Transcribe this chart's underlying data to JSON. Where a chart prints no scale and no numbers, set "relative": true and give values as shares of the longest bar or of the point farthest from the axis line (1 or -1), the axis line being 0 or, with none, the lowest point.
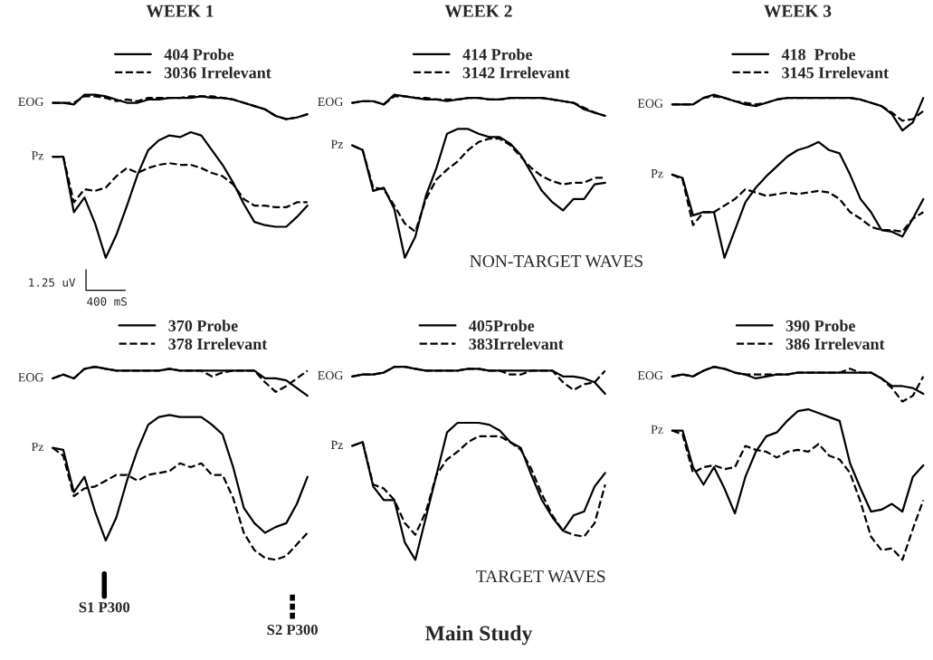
{
  "chart_data": [
    {
      "type": "line",
      "title": "WEEK 1",
      "relative": true,
      "legend": "top",
      "categories": [
        null,
        null,
        null,
        null,
        null,
        null,
        null,
        null,
        null,
        null,
        null,
        null,
        null,
        null,
        null,
        null,
        null,
        null,
        null,
        null,
        null,
        null,
        null,
        null,
        null
      ],
      "series": [
        {
          "color": "#000000",
          "line_style": "solid",
          "values": [
            0.95,
            0.95,
            0.94,
            1.0,
            1.0,
            0.99,
            0.97,
            0.95,
            0.95,
            0.97,
            0.97,
            0.98,
            0.98,
            0.98,
            0.99,
            0.98,
            0.98,
            0.97,
            0.95,
            0.93,
            0.91,
            0.87,
            0.85,
            0.86,
            0.88
          ]
        },
        {
          "color": "#000000",
          "line_style": "dashed",
          "values": [
            0.95,
            0.95,
            0.95,
            0.99,
            0.99,
            0.98,
            0.96,
            0.97,
            0.96,
            0.98,
            0.98,
            0.98,
            0.98,
            0.99,
            0.99,
            0.99,
            0.98,
            0.97,
            0.95,
            0.93,
            0.91,
            0.87,
            0.85,
            0.86,
            0.88
          ]
        },
        {
          "name": "404 Probe",
          "color": "#000000",
          "line_style": "solid",
          "values": [
            0.62,
            0.62,
            0.28,
            0.37,
            0.21,
            0.0,
            0.14,
            0.32,
            0.51,
            0.66,
            0.72,
            0.75,
            0.74,
            0.77,
            0.75,
            0.66,
            0.57,
            0.46,
            0.33,
            0.22,
            0.2,
            0.19,
            0.19,
            0.25,
            0.32
          ]
        },
        {
          "name": "3036 Irrelevant",
          "color": "#000000",
          "line_style": "dashed",
          "values": [
            0.62,
            0.62,
            0.34,
            0.42,
            0.41,
            0.43,
            0.5,
            0.55,
            0.52,
            0.55,
            0.57,
            0.58,
            0.57,
            0.57,
            0.55,
            0.52,
            0.5,
            0.45,
            0.36,
            0.32,
            0.32,
            0.31,
            0.31,
            0.34,
            0.34
          ]
        }
      ],
      "annotations": [
        "EOG",
        "Pz",
        "1.25 uV",
        "400 mS"
      ]
    },
    {
      "type": "line",
      "title": "WEEK 2",
      "relative": true,
      "legend": "top",
      "categories": [
        null,
        null,
        null,
        null,
        null,
        null,
        null,
        null,
        null,
        null,
        null,
        null,
        null,
        null,
        null,
        null,
        null,
        null,
        null,
        null,
        null,
        null,
        null,
        null,
        null
      ],
      "series": [
        {
          "color": "#000000",
          "line_style": "solid",
          "values": [
            0.95,
            0.96,
            0.96,
            0.94,
            1.0,
            0.99,
            0.98,
            0.97,
            0.97,
            0.96,
            0.97,
            0.98,
            0.98,
            0.97,
            0.97,
            0.98,
            0.98,
            0.98,
            0.98,
            0.97,
            0.96,
            0.95,
            0.91,
            0.89,
            0.87
          ]
        },
        {
          "color": "#000000",
          "line_style": "dashed",
          "values": [
            0.95,
            0.96,
            0.96,
            0.94,
            0.99,
            0.99,
            0.98,
            0.98,
            0.97,
            0.97,
            0.97,
            0.98,
            0.98,
            0.97,
            0.97,
            0.98,
            0.98,
            0.98,
            0.98,
            0.97,
            0.96,
            0.95,
            0.92,
            0.89,
            0.87
          ]
        },
        {
          "name": "414 Probe",
          "color": "#000000",
          "line_style": "solid",
          "values": [
            0.69,
            0.66,
            0.41,
            0.43,
            0.3,
            0.0,
            0.13,
            0.38,
            0.55,
            0.76,
            0.79,
            0.79,
            0.76,
            0.74,
            0.74,
            0.7,
            0.63,
            0.52,
            0.41,
            0.34,
            0.29,
            0.36,
            0.36,
            0.45,
            0.46
          ]
        },
        {
          "name": "3142 Irrelevant",
          "color": "#000000",
          "line_style": "dashed",
          "values": [
            0.69,
            0.66,
            0.43,
            0.42,
            0.32,
            0.21,
            0.16,
            0.36,
            0.48,
            0.54,
            0.59,
            0.66,
            0.71,
            0.73,
            0.73,
            0.69,
            0.62,
            0.55,
            0.5,
            0.47,
            0.45,
            0.46,
            0.46,
            0.49,
            0.49
          ]
        }
      ],
      "annotations": [
        "EOG",
        "Pz",
        "NON-TARGET WAVES"
      ]
    },
    {
      "type": "line",
      "title": "WEEK 3",
      "relative": true,
      "legend": "top",
      "categories": [
        null,
        null,
        null,
        null,
        null,
        null,
        null,
        null,
        null,
        null,
        null,
        null,
        null,
        null,
        null,
        null,
        null,
        null,
        null,
        null,
        null,
        null,
        null,
        null,
        null
      ],
      "series": [
        {
          "color": "#000000",
          "line_style": "solid",
          "values": [
            0.94,
            0.94,
            0.94,
            0.98,
            1.0,
            0.98,
            0.96,
            0.94,
            0.93,
            0.95,
            0.97,
            0.98,
            0.98,
            0.98,
            0.98,
            0.98,
            0.98,
            0.98,
            0.97,
            0.95,
            0.93,
            0.88,
            0.78,
            0.83,
            0.98
          ]
        },
        {
          "color": "#000000",
          "line_style": "dashed",
          "values": [
            0.94,
            0.94,
            0.94,
            0.98,
            0.99,
            0.98,
            0.96,
            0.95,
            0.94,
            0.95,
            0.97,
            0.98,
            0.98,
            0.98,
            0.98,
            0.98,
            0.98,
            0.98,
            0.97,
            0.95,
            0.93,
            0.89,
            0.84,
            0.85,
            0.9
          ]
        },
        {
          "name": "418  Probe",
          "color": "#000000",
          "line_style": "solid",
          "values": [
            0.51,
            0.49,
            0.26,
            0.28,
            0.28,
            0.0,
            0.17,
            0.34,
            0.43,
            0.5,
            0.56,
            0.62,
            0.66,
            0.68,
            0.71,
            0.66,
            0.64,
            0.51,
            0.36,
            0.28,
            0.17,
            0.16,
            0.13,
            0.24,
            0.36
          ]
        },
        {
          "name": "3145 Irrelevant",
          "color": "#000000",
          "line_style": "dashed",
          "values": [
            0.51,
            0.48,
            0.2,
            0.28,
            0.28,
            0.32,
            0.36,
            0.42,
            0.4,
            0.38,
            0.39,
            0.4,
            0.39,
            0.4,
            0.41,
            0.4,
            0.36,
            0.28,
            0.24,
            0.19,
            0.17,
            0.17,
            0.16,
            0.24,
            0.28
          ]
        }
      ],
      "annotations": [
        "EOG",
        "Pz"
      ]
    },
    {
      "type": "line",
      "relative": true,
      "legend": "top",
      "categories": [
        null,
        null,
        null,
        null,
        null,
        null,
        null,
        null,
        null,
        null,
        null,
        null,
        null,
        null,
        null,
        null,
        null,
        null,
        null,
        null,
        null,
        null,
        null,
        null,
        null
      ],
      "series": [
        {
          "color": "#000000",
          "line_style": "solid",
          "values": [
            0.94,
            0.96,
            0.94,
            0.99,
            1.0,
            0.99,
            0.98,
            0.98,
            0.98,
            0.98,
            0.98,
            0.99,
            0.98,
            0.98,
            0.98,
            0.98,
            0.98,
            0.98,
            0.98,
            0.98,
            0.94,
            0.94,
            0.93,
            0.89,
            0.85
          ]
        },
        {
          "color": "#000000",
          "line_style": "dashed",
          "values": [
            0.94,
            0.96,
            0.94,
            0.99,
            1.0,
            0.99,
            0.98,
            0.98,
            0.98,
            0.98,
            0.98,
            0.99,
            0.98,
            0.98,
            0.98,
            0.95,
            0.97,
            0.98,
            0.98,
            0.98,
            0.92,
            0.87,
            0.9,
            0.94,
            0.98
          ]
        },
        {
          "name": "370 Probe",
          "color": "#000000",
          "line_style": "solid",
          "values": [
            0.58,
            0.57,
            0.35,
            0.43,
            0.25,
            0.1,
            0.22,
            0.41,
            0.57,
            0.7,
            0.74,
            0.75,
            0.74,
            0.74,
            0.74,
            0.7,
            0.65,
            0.48,
            0.27,
            0.19,
            0.14,
            0.17,
            0.19,
            0.29,
            0.43
          ]
        },
        {
          "name": "378 Irrelevant",
          "color": "#000000",
          "line_style": "dashed",
          "values": [
            0.58,
            0.54,
            0.33,
            0.37,
            0.38,
            0.41,
            0.44,
            0.44,
            0.41,
            0.44,
            0.45,
            0.46,
            0.5,
            0.48,
            0.5,
            0.44,
            0.44,
            0.32,
            0.14,
            0.05,
            0.01,
            0.0,
            0.02,
            0.08,
            0.14
          ]
        }
      ],
      "annotations": [
        "EOG",
        "Pz",
        "S1 P300",
        "S2 P300"
      ]
    },
    {
      "type": "line",
      "relative": true,
      "legend": "top",
      "categories": [
        null,
        null,
        null,
        null,
        null,
        null,
        null,
        null,
        null,
        null,
        null,
        null,
        null,
        null,
        null,
        null,
        null,
        null,
        null,
        null,
        null,
        null,
        null,
        null,
        null
      ],
      "series": [
        {
          "color": "#000000",
          "line_style": "solid",
          "values": [
            0.95,
            0.96,
            0.96,
            0.97,
            1.0,
            1.0,
            0.99,
            0.98,
            0.98,
            0.98,
            0.98,
            0.99,
            0.99,
            0.98,
            0.98,
            0.98,
            0.98,
            0.98,
            0.98,
            0.98,
            0.95,
            0.95,
            0.94,
            0.92,
            0.86
          ]
        },
        {
          "color": "#000000",
          "line_style": "dashed",
          "values": [
            0.95,
            0.96,
            0.96,
            0.97,
            1.0,
            1.0,
            0.99,
            0.98,
            0.98,
            0.98,
            0.98,
            0.99,
            0.99,
            0.98,
            0.98,
            0.96,
            0.96,
            0.98,
            0.98,
            0.98,
            0.92,
            0.88,
            0.91,
            0.92,
            0.98
          ]
        },
        {
          "name": "405Probe",
          "color": "#000000",
          "line_style": "solid",
          "values": [
            0.59,
            0.61,
            0.38,
            0.31,
            0.31,
            0.09,
            0.0,
            0.22,
            0.44,
            0.66,
            0.71,
            0.71,
            0.71,
            0.7,
            0.67,
            0.61,
            0.58,
            0.44,
            0.31,
            0.22,
            0.15,
            0.23,
            0.25,
            0.38,
            0.45
          ]
        },
        {
          "name": "383Irrelevant",
          "color": "#000000",
          "line_style": "dashed",
          "values": [
            0.59,
            0.61,
            0.39,
            0.37,
            0.31,
            0.19,
            0.13,
            0.25,
            0.44,
            0.52,
            0.56,
            0.61,
            0.64,
            0.64,
            0.64,
            0.61,
            0.57,
            0.47,
            0.34,
            0.23,
            0.15,
            0.13,
            0.12,
            0.19,
            0.39
          ]
        }
      ],
      "annotations": [
        "EOG",
        "Pz",
        "TARGET WAVES",
        "Main Study"
      ]
    },
    {
      "type": "line",
      "relative": true,
      "legend": "top",
      "categories": [
        null,
        null,
        null,
        null,
        null,
        null,
        null,
        null,
        null,
        null,
        null,
        null,
        null,
        null,
        null,
        null,
        null,
        null,
        null,
        null,
        null,
        null,
        null,
        null,
        null
      ],
      "series": [
        {
          "color": "#000000",
          "line_style": "solid",
          "values": [
            0.95,
            0.96,
            0.95,
            0.98,
            1.0,
            0.99,
            0.97,
            0.96,
            0.94,
            0.95,
            0.96,
            0.96,
            0.97,
            0.97,
            0.97,
            0.97,
            0.97,
            0.97,
            0.97,
            0.97,
            0.94,
            0.9,
            0.9,
            0.89,
            0.86
          ]
        },
        {
          "color": "#000000",
          "line_style": "dashed",
          "values": [
            0.95,
            0.96,
            0.95,
            0.98,
            1.0,
            0.99,
            0.97,
            0.96,
            0.96,
            0.96,
            0.96,
            0.96,
            0.97,
            0.97,
            0.97,
            0.97,
            0.97,
            0.99,
            0.97,
            0.97,
            0.94,
            0.89,
            0.82,
            0.85,
            0.95
          ]
        },
        {
          "name": "390 Probe",
          "color": "#000000",
          "line_style": "solid",
          "values": [
            0.67,
            0.67,
            0.48,
            0.39,
            0.48,
            0.37,
            0.24,
            0.43,
            0.56,
            0.64,
            0.66,
            0.72,
            0.77,
            0.78,
            0.76,
            0.74,
            0.72,
            0.5,
            0.37,
            0.25,
            0.26,
            0.29,
            0.25,
            0.43,
            0.49
          ]
        },
        {
          "name": "386 Irrelevant",
          "color": "#000000",
          "line_style": "dashed",
          "values": [
            0.67,
            0.65,
            0.45,
            0.48,
            0.49,
            0.47,
            0.48,
            0.59,
            0.57,
            0.56,
            0.53,
            0.56,
            0.57,
            0.56,
            0.6,
            0.54,
            0.52,
            0.45,
            0.3,
            0.12,
            0.05,
            0.06,
            0.0,
            0.16,
            0.31
          ]
        }
      ],
      "annotations": [
        "EOG",
        "Pz"
      ]
    }
  ]
}
